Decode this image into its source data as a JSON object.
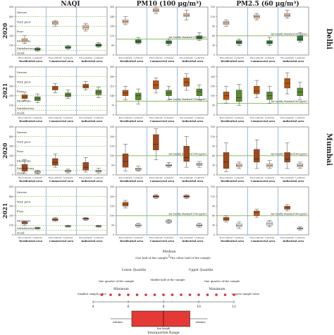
{
  "headers": {
    "naqi": "NAQI",
    "pm10": "PM10 (100 μg/m³)",
    "pm25": "PM2.5 (60 μg/m³)"
  },
  "years": [
    "2020",
    "2021",
    "2020",
    "2021"
  ],
  "cities": [
    "Delhi",
    "Mumbai"
  ],
  "area_labels": [
    "Residential area",
    "Commercial area",
    "Industrial area"
  ],
  "pre_label": "Pre-Lockdown",
  "lock_label": "Lockdown",
  "naqi_categories": [
    "Severe",
    "Very poor",
    "Poor",
    "Moderate",
    "Satisfactory",
    "Good"
  ],
  "standard_labels": {
    "pm10": "Air Quality Standard (100 μg/m³)",
    "pm25": "Air Quality Standard (60 μg/m³)"
  },
  "colors": {
    "delhi20_pre": "#f7c9a5",
    "delhi20_lock": "#2e7d32",
    "delhi21_pre": "#b8540f",
    "delhi21_lock": "#5a8a2e",
    "mum20_pre": "#a0481a",
    "mum20_lock": "#f4d9c6",
    "mum21_pre": "#c0561a",
    "mum21_lock": "#f5f2e8",
    "standard_line": "#7cb342",
    "divider": "#7fa7d6"
  },
  "chart_data": [
    {
      "type": "box",
      "panel": "Delhi 2020 NAQI",
      "ylim": [
        0,
        500
      ],
      "yticks": [
        0,
        50,
        100,
        150,
        200,
        250,
        300,
        350,
        400,
        450,
        500
      ],
      "series": [
        {
          "name": "Residential area",
          "pre": [
            120,
            140,
            155,
            170,
            200
          ],
          "lock": [
            40,
            50,
            60,
            70,
            80
          ]
        },
        {
          "name": "Commercial area",
          "pre": [
            300,
            320,
            335,
            350,
            360
          ],
          "lock": [
            60,
            70,
            80,
            90,
            100
          ]
        },
        {
          "name": "Industrial area",
          "pre": [
            250,
            270,
            290,
            310,
            330
          ],
          "lock": [
            80,
            90,
            100,
            115,
            130
          ]
        }
      ]
    },
    {
      "type": "box",
      "panel": "Delhi 2020 PM10",
      "ylim": [
        0,
        300
      ],
      "series": [
        {
          "name": "Residential area",
          "pre": [
            190,
            200,
            210,
            220,
            240
          ],
          "lock": [
            70,
            75,
            85,
            95,
            110
          ]
        },
        {
          "name": "Commercial area",
          "pre": [
            260,
            270,
            280,
            290,
            300
          ],
          "lock": [
            60,
            70,
            80,
            90,
            100
          ]
        },
        {
          "name": "Industrial area",
          "pre": [
            220,
            240,
            250,
            260,
            280
          ],
          "lock": [
            90,
            100,
            110,
            120,
            140
          ]
        }
      ]
    },
    {
      "type": "box",
      "panel": "Delhi 2020 PM2.5",
      "ylim": [
        0,
        150
      ],
      "series": [
        {
          "name": "Residential area",
          "pre": [
            90,
            95,
            100,
            105,
            110
          ],
          "lock": [
            30,
            35,
            40,
            45,
            50
          ]
        },
        {
          "name": "Commercial area",
          "pre": [
            110,
            115,
            120,
            125,
            130
          ],
          "lock": [
            30,
            35,
            40,
            45,
            55
          ]
        },
        {
          "name": "Industrial area",
          "pre": [
            115,
            120,
            125,
            130,
            140
          ],
          "lock": [
            40,
            45,
            50,
            60,
            70
          ]
        }
      ]
    },
    {
      "type": "box",
      "panel": "Delhi 2021 NAQI",
      "ylim": [
        0,
        500
      ],
      "series": [
        {
          "name": "Residential area",
          "pre": [
            150,
            170,
            190,
            210,
            240
          ],
          "lock": [
            130,
            150,
            170,
            190,
            220
          ]
        },
        {
          "name": "Commercial area",
          "pre": [
            230,
            260,
            280,
            300,
            330
          ],
          "lock": [
            170,
            190,
            210,
            230,
            260
          ]
        },
        {
          "name": "Industrial area",
          "pre": [
            260,
            280,
            300,
            320,
            350
          ],
          "lock": [
            180,
            210,
            240,
            260,
            290
          ]
        }
      ]
    },
    {
      "type": "box",
      "panel": "Delhi 2021 PM10",
      "ylim": [
        0,
        350
      ],
      "series": [
        {
          "name": "Residential area",
          "pre": [
            110,
            140,
            160,
            180,
            210
          ],
          "lock": [
            80,
            110,
            140,
            160,
            190
          ]
        },
        {
          "name": "Commercial area",
          "pre": [
            160,
            190,
            220,
            250,
            270
          ],
          "lock": [
            110,
            140,
            160,
            180,
            210
          ]
        },
        {
          "name": "Industrial area",
          "pre": [
            180,
            210,
            240,
            270,
            300
          ],
          "lock": [
            110,
            140,
            170,
            190,
            220
          ]
        }
      ]
    },
    {
      "type": "box",
      "panel": "Delhi 2021 PM2.5",
      "ylim": [
        0,
        250
      ],
      "series": [
        {
          "name": "Residential area",
          "pre": [
            60,
            80,
            100,
            120,
            150
          ],
          "lock": [
            50,
            70,
            90,
            130,
            160
          ]
        },
        {
          "name": "Commercial area",
          "pre": [
            90,
            110,
            125,
            150,
            180
          ],
          "lock": [
            60,
            80,
            100,
            120,
            150
          ]
        },
        {
          "name": "Industrial area",
          "pre": [
            110,
            140,
            165,
            190,
            220
          ],
          "lock": [
            80,
            100,
            120,
            140,
            170
          ]
        }
      ]
    },
    {
      "type": "box",
      "panel": "Mumbai 2020 NAQI",
      "ylim": [
        0,
        500
      ],
      "series": [
        {
          "name": "Residential area",
          "pre": [
            20,
            40,
            70,
            110,
            160
          ],
          "lock": [
            10,
            20,
            30,
            40,
            50
          ]
        },
        {
          "name": "Commercial area",
          "pre": [
            80,
            100,
            130,
            170,
            220
          ],
          "lock": [
            20,
            30,
            40,
            50,
            60
          ]
        },
        {
          "name": "Industrial area",
          "pre": [
            30,
            50,
            80,
            130,
            180
          ],
          "lock": [
            20,
            30,
            40,
            50,
            70
          ]
        }
      ]
    },
    {
      "type": "box",
      "panel": "Mumbai 2020 PM10",
      "ylim": [
        0,
        250
      ],
      "series": [
        {
          "name": "Residential area",
          "pre": [
            20,
            40,
            70,
            110,
            160
          ],
          "lock": [
            20,
            25,
            30,
            35,
            45
          ]
        },
        {
          "name": "Commercial area",
          "pre": [
            80,
            130,
            160,
            210,
            240
          ],
          "lock": [
            40,
            45,
            50,
            55,
            65
          ]
        },
        {
          "name": "Industrial area",
          "pre": [
            40,
            70,
            90,
            150,
            200
          ],
          "lock": [
            40,
            50,
            55,
            60,
            70
          ]
        }
      ]
    },
    {
      "type": "box",
      "panel": "Mumbai 2020 PM2.5",
      "ylim": [
        0,
        150
      ],
      "series": [
        {
          "name": "Residential area",
          "pre": [
            10,
            20,
            40,
            70,
            100
          ],
          "lock": [
            20,
            25,
            30,
            35,
            40
          ]
        },
        {
          "name": "Commercial area",
          "pre": [
            20,
            40,
            50,
            80,
            110
          ],
          "lock": [
            20,
            25,
            30,
            35,
            45
          ]
        },
        {
          "name": "Industrial area",
          "pre": [
            20,
            40,
            50,
            70,
            100
          ],
          "lock": [
            20,
            25,
            30,
            35,
            40
          ]
        }
      ]
    },
    {
      "type": "box",
      "panel": "Mumbai 2021 NAQI",
      "ylim": [
        0,
        500
      ],
      "series": [
        {
          "name": "Residential area",
          "pre": [
            100,
            115,
            125,
            135,
            145
          ],
          "lock": [
            60,
            65,
            70,
            75,
            80
          ]
        },
        {
          "name": "Commercial area",
          "pre": [
            140,
            150,
            160,
            170,
            180
          ],
          "lock": [
            80,
            85,
            90,
            95,
            100
          ]
        },
        {
          "name": "Industrial area",
          "pre": [
            150,
            160,
            170,
            175,
            180
          ],
          "lock": [
            80,
            85,
            90,
            95,
            100
          ]
        }
      ]
    },
    {
      "type": "box",
      "panel": "Mumbai 2021 PM10",
      "ylim": [
        0,
        250
      ],
      "series": [
        {
          "name": "Residential area",
          "pre": [
            140,
            150,
            160,
            170,
            180
          ],
          "lock": [
            40,
            45,
            50,
            55,
            60
          ]
        },
        {
          "name": "Commercial area",
          "pre": [
            190,
            195,
            200,
            205,
            210
          ],
          "lock": [
            60,
            65,
            70,
            75,
            80
          ]
        },
        {
          "name": "Industrial area",
          "pre": [
            190,
            195,
            200,
            205,
            210
          ],
          "lock": [
            40,
            45,
            50,
            55,
            60
          ]
        }
      ]
    },
    {
      "type": "box",
      "panel": "Mumbai 2021 PM2.5",
      "ylim": [
        0,
        150
      ],
      "series": [
        {
          "name": "Residential area",
          "pre": [
            40,
            45,
            50,
            55,
            60
          ],
          "lock": [
            20,
            25,
            30,
            35,
            40
          ]
        },
        {
          "name": "Commercial area",
          "pre": [
            55,
            60,
            70,
            75,
            80
          ],
          "lock": [
            25,
            30,
            35,
            40,
            45
          ]
        },
        {
          "name": "Industrial area",
          "pre": [
            75,
            80,
            85,
            90,
            95
          ],
          "lock": [
            15,
            18,
            20,
            22,
            25
          ]
        }
      ]
    }
  ],
  "legend": {
    "median": "Median",
    "half_left": "One half of the sample",
    "half_right": "The other half of the sample",
    "lower_q": "Lower Quartile",
    "upper_q": "Upper Quartile",
    "quarter_left": "One quarter of the sample",
    "middle_half": "Middle half of the sample",
    "quarter_right": "One quarter of the sample",
    "minimum": "Minimum",
    "maximum": "Maximum",
    "smallest": "Smallest sample value",
    "largest": "Largest sample value",
    "whisker": "whisker",
    "box_length": "box length",
    "iqr": "Interquartile Range",
    "ticks": [
      "4",
      "6",
      "8",
      "10",
      "12"
    ]
  }
}
